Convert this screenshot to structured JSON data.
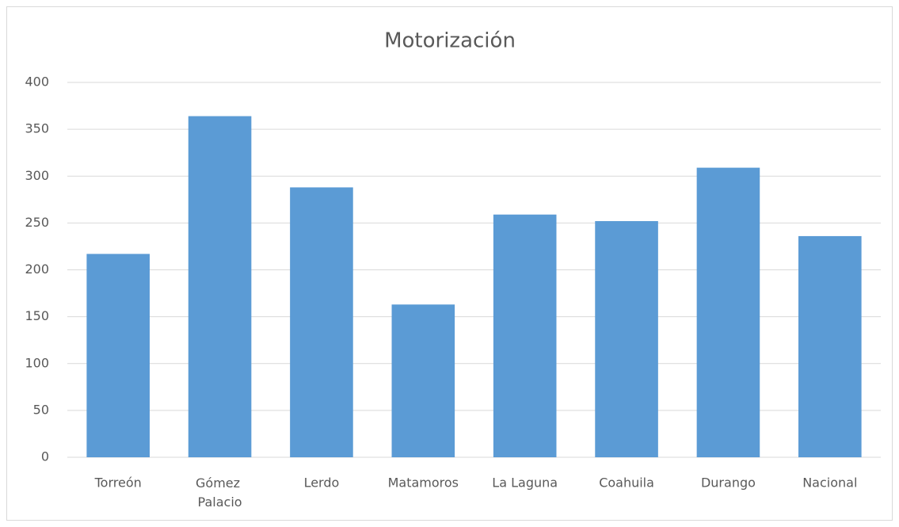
{
  "chart_data": {
    "type": "bar",
    "title": "Motorización",
    "categories": [
      "Torreón",
      "Gómez Palacio",
      "Lerdo",
      "Matamoros",
      "La Laguna",
      "Coahuila",
      "Durango",
      "Nacional"
    ],
    "values": [
      217,
      364,
      288,
      163,
      259,
      252,
      309,
      236
    ],
    "color": "#5b9bd5",
    "ylim": [
      0,
      400
    ],
    "yticks": [
      0,
      50,
      100,
      150,
      200,
      250,
      300,
      350,
      400
    ],
    "grid": true
  }
}
